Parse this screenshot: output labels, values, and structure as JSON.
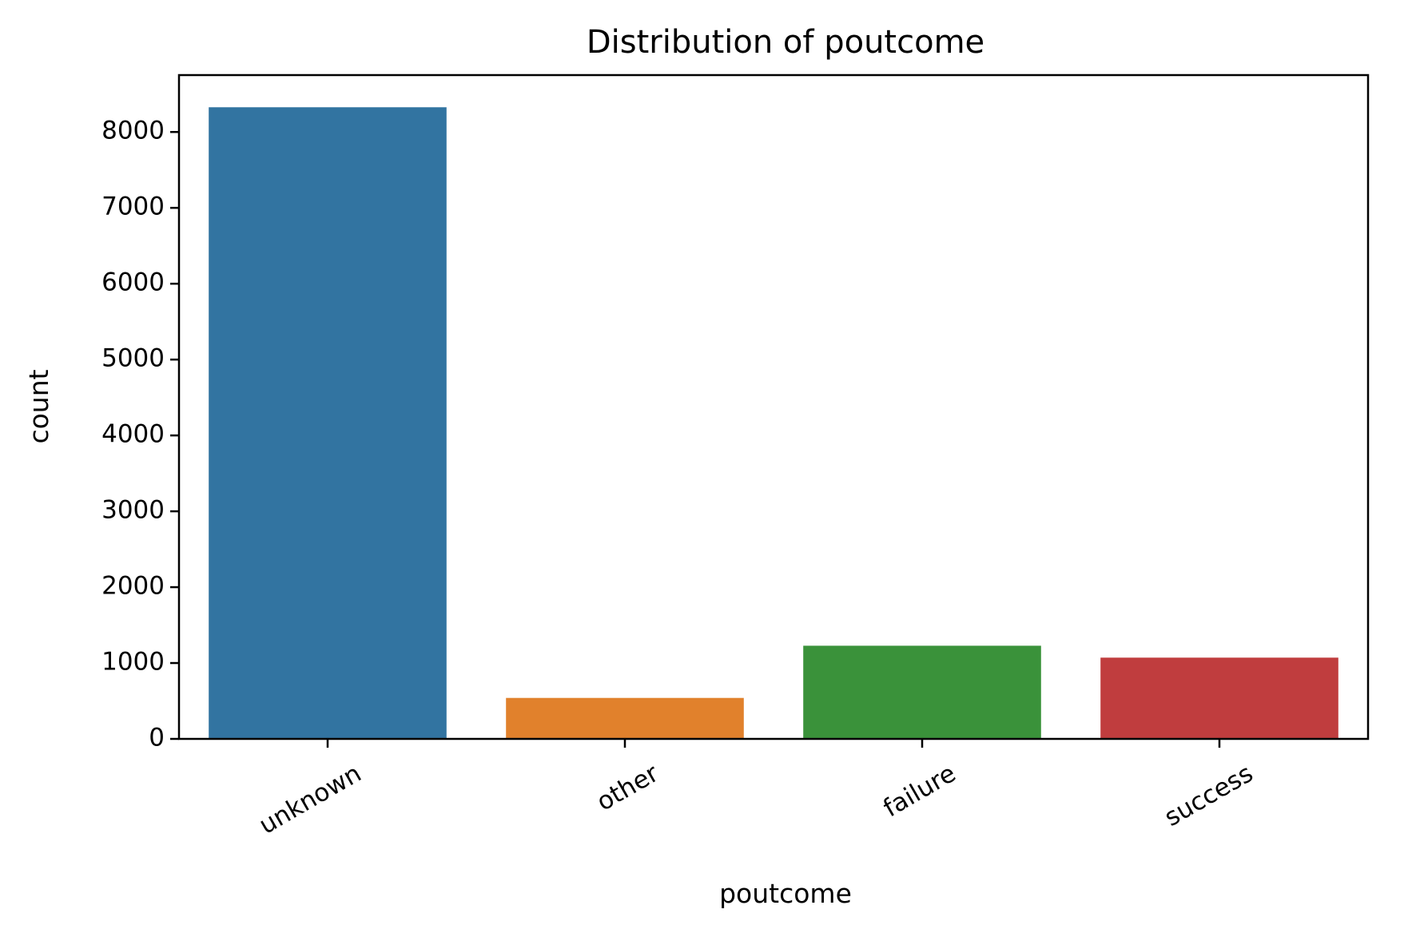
{
  "chart_data": {
    "type": "bar",
    "title": "Distribution of poutcome",
    "xlabel": "poutcome",
    "ylabel": "count",
    "categories": [
      "unknown",
      "other",
      "failure",
      "success"
    ],
    "values": [
      8326,
      540,
      1228,
      1071
    ],
    "colors": [
      "#3274a1",
      "#e1812c",
      "#3a923a",
      "#c03d3e"
    ],
    "ylim": [
      0,
      8750
    ],
    "yticks": [
      0,
      1000,
      2000,
      3000,
      4000,
      5000,
      6000,
      7000,
      8000
    ],
    "grid": false,
    "legend": "none",
    "xtick_rotation": -30
  }
}
